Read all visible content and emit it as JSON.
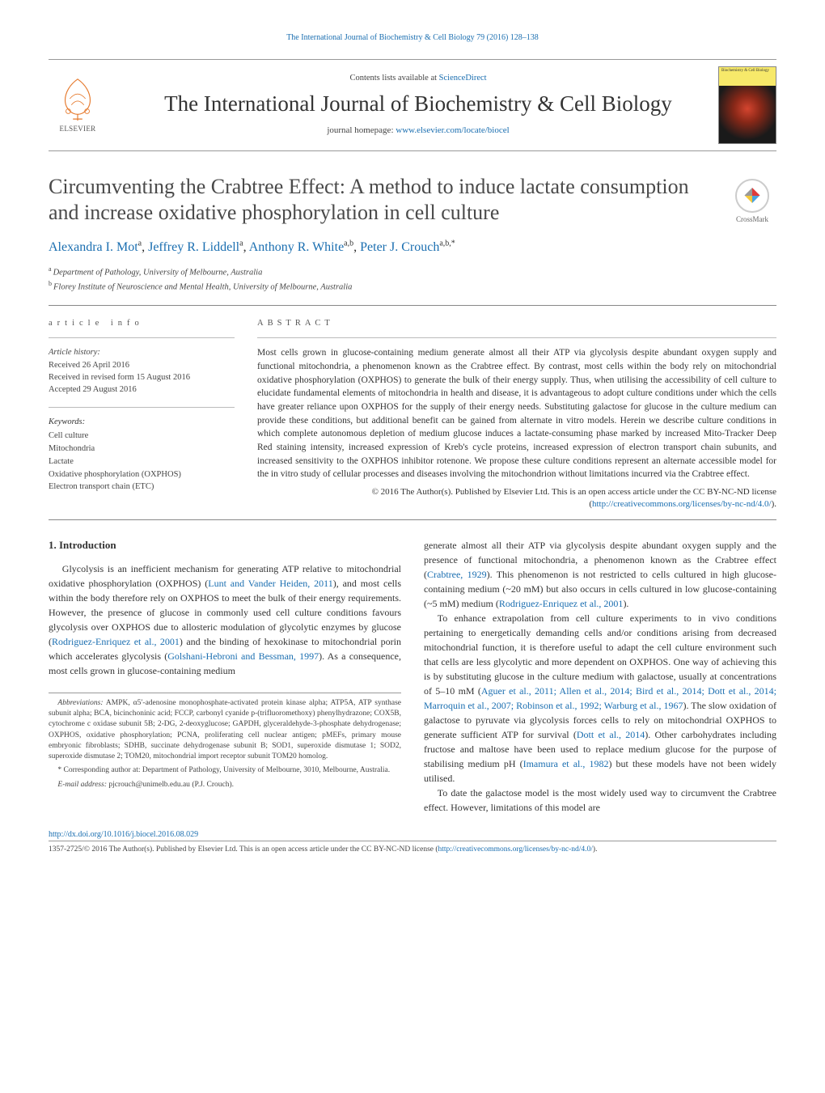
{
  "journalHeaderLink": "The International Journal of Biochemistry & Cell Biology 79 (2016) 128–138",
  "masthead": {
    "elsevier": "ELSEVIER",
    "contentsLine": "Contents lists available at ",
    "scienceDirect": "ScienceDirect",
    "journalTitle": "The International Journal of Biochemistry & Cell Biology",
    "homepageLabel": "journal homepage: ",
    "homepageLink": "www.elsevier.com/locate/biocel",
    "coverTop": "Biochemistry & Cell Biology"
  },
  "crossmark": "CrossMark",
  "article": {
    "title": "Circumventing the Crabtree Effect: A method to induce lactate consumption and increase oxidative phosphorylation in cell culture",
    "authorsHtml": [
      {
        "name": "Alexandra I. Mot",
        "aff": "a"
      },
      {
        "name": "Jeffrey R. Liddell",
        "aff": "a"
      },
      {
        "name": "Anthony R. White",
        "aff": "a,b"
      },
      {
        "name": "Peter J. Crouch",
        "aff": "a,b,",
        "corr": "*"
      }
    ],
    "affiliations": [
      {
        "sup": "a",
        "text": "Department of Pathology, University of Melbourne, Australia"
      },
      {
        "sup": "b",
        "text": "Florey Institute of Neuroscience and Mental Health, University of Melbourne, Australia"
      }
    ]
  },
  "articleInfo": {
    "head": "article info",
    "historyLabel": "Article history:",
    "history": [
      "Received 26 April 2016",
      "Received in revised form 15 August 2016",
      "Accepted 29 August 2016"
    ],
    "keywordsLabel": "Keywords:",
    "keywords": [
      "Cell culture",
      "Mitochondria",
      "Lactate",
      "Oxidative phosphorylation (OXPHOS)",
      "Electron transport chain (ETC)"
    ]
  },
  "abstract": {
    "head": "ABSTRACT",
    "text": "Most cells grown in glucose-containing medium generate almost all their ATP via glycolysis despite abundant oxygen supply and functional mitochondria, a phenomenon known as the Crabtree effect. By contrast, most cells within the body rely on mitochondrial oxidative phosphorylation (OXPHOS) to generate the bulk of their energy supply. Thus, when utilising the accessibility of cell culture to elucidate fundamental elements of mitochondria in health and disease, it is advantageous to adopt culture conditions under which the cells have greater reliance upon OXPHOS for the supply of their energy needs. Substituting galactose for glucose in the culture medium can provide these conditions, but additional benefit can be gained from alternate in vitro models. Herein we describe culture conditions in which complete autonomous depletion of medium glucose induces a lactate-consuming phase marked by increased Mito-Tracker Deep Red staining intensity, increased expression of Kreb's cycle proteins, increased expression of electron transport chain subunits, and increased sensitivity to the OXPHOS inhibitor rotenone. We propose these culture conditions represent an alternate accessible model for the in vitro study of cellular processes and diseases involving the mitochondrion without limitations incurred via the Crabtree effect.",
    "copyright": "© 2016 The Author(s). Published by Elsevier Ltd. This is an open access article under the CC BY-NC-ND license (",
    "ccLink": "http://creativecommons.org/licenses/by-nc-nd/4.0/",
    "copyrightEnd": ")."
  },
  "intro": {
    "heading": "1. Introduction",
    "col1p1a": "Glycolysis is an inefficient mechanism for generating ATP relative to mitochondrial oxidative phosphorylation (OXPHOS) (",
    "ref1": "Lunt and Vander Heiden, 2011",
    "col1p1b": "), and most cells within the body therefore rely on OXPHOS to meet the bulk of their energy requirements. However, the presence of glucose in commonly used cell culture conditions favours glycolysis over OXPHOS due to allosteric modulation of glycolytic enzymes by glucose (",
    "ref2": "Rodriguez-Enriquez et al., 2001",
    "col1p1c": ") and the binding of hexokinase to mitochondrial porin which accelerates glycolysis (",
    "ref3": "Golshani-Hebroni and Bessman, 1997",
    "col1p1d": "). As a consequence, most cells grown in glucose-containing medium",
    "col2p1a": "generate almost all their ATP via glycolysis despite abundant oxygen supply and the presence of functional mitochondria, a phenomenon known as the Crabtree effect (",
    "ref4": "Crabtree, 1929",
    "col2p1b": "). This phenomenon is not restricted to cells cultured in high glucose-containing medium (~20 mM) but also occurs in cells cultured in low glucose-containing (~5 mM) medium (",
    "ref5": "Rodriguez-Enriquez et al., 2001",
    "col2p1c": ").",
    "col2p2a": "To enhance extrapolation from cell culture experiments to in vivo conditions pertaining to energetically demanding cells and/or conditions arising from decreased mitochondrial function, it is therefore useful to adapt the cell culture environment such that cells are less glycolytic and more dependent on OXPHOS. One way of achieving this is by substituting glucose in the culture medium with galactose, usually at concentrations of 5–10 mM (",
    "ref6": "Aguer et al., 2011; Allen et al., 2014; Bird et al., 2014; Dott et al., 2014; Marroquin et al., 2007; Robinson et al., 1992; Warburg et al., 1967",
    "col2p2b": "). The slow oxidation of galactose to pyruvate via glycolysis forces cells to rely on mitochondrial OXPHOS to generate sufficient ATP for survival (",
    "ref7": "Dott et al., 2014",
    "col2p2c": "). Other carbohydrates including fructose and maltose have been used to replace medium glucose for the purpose of stabilising medium pH (",
    "ref8": "Imamura et al., 1982",
    "col2p2d": ") but these models have not been widely utilised.",
    "col2p3": "To date the galactose model is the most widely used way to circumvent the Crabtree effect. However, limitations of this model are"
  },
  "footnotes": {
    "abbrLabel": "Abbreviations:",
    "abbr": " AMPK, α5′-adenosine monophosphate-activated protein kinase alpha; ATP5A, ATP synthase subunit alpha; BCA, bicinchoninic acid; FCCP, carbonyl cyanide p-(trifluoromethoxy) phenylhydrazone; COX5B, cytochrome c oxidase subunit 5B; 2-DG, 2-deoxyglucose; GAPDH, glyceraldehyde-3-phosphate dehydrogenase; OXPHOS, oxidative phosphorylation; PCNA, proliferating cell nuclear antigen; pMEFs, primary mouse embryonic fibroblasts; SDHB, succinate dehydrogenase subunit B; SOD1, superoxide dismutase 1; SOD2, superoxide dismutase 2; TOM20, mitochondrial import receptor subunit TOM20 homolog.",
    "corrLabel": "* Corresponding author at: ",
    "corr": "Department of Pathology, University of Melbourne, 3010, Melbourne, Australia.",
    "emailLabel": "E-mail address: ",
    "email": "pjcrouch@unimelb.edu.au",
    "emailSuffix": " (P.J. Crouch)."
  },
  "footer": {
    "doi": "http://dx.doi.org/10.1016/j.biocel.2016.08.029",
    "issnLine": "1357-2725/© 2016 The Author(s). Published by Elsevier Ltd. This is an open access article under the CC BY-NC-ND license (",
    "ccLink": "http://creativecommons.org/licenses/by-nc-nd/4.0/",
    "issnEnd": ")."
  },
  "colors": {
    "link": "#1a6eb0",
    "text": "#333333",
    "rule": "#888888"
  }
}
